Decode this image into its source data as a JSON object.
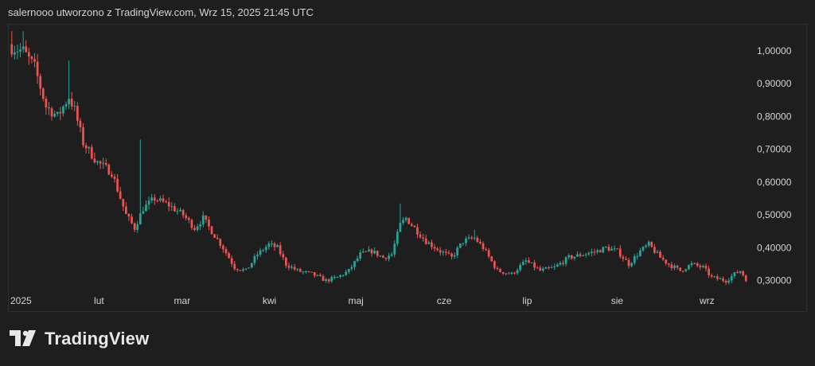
{
  "header": {
    "caption": "salernooo utworzono z TradingView.com, Wrz 15, 2025 21:45 UTC"
  },
  "brand": {
    "name": "TradingView",
    "logo_icon": "tradingview-logo-icon"
  },
  "colors": {
    "background": "#1e1e1e",
    "up": "#26a69a",
    "down": "#ef5350",
    "axis_text": "#d1d4dc"
  },
  "chart_data": {
    "type": "candlestick",
    "title": "",
    "xlabel": "",
    "ylabel": "",
    "ylim": [
      0.275,
      1.07
    ],
    "y_ticks": [
      "1,00000",
      "0,90000",
      "0,80000",
      "0,70000",
      "0,60000",
      "0,50000",
      "0,40000",
      "0,30000"
    ],
    "y_tick_values": [
      1.0,
      0.9,
      0.8,
      0.7,
      0.6,
      0.5,
      0.4,
      0.3
    ],
    "x_ticks": [
      "2025",
      "lut",
      "mar",
      "kwi",
      "maj",
      "cze",
      "lip",
      "sie",
      "wrz"
    ],
    "x_tick_days": [
      0,
      31,
      59,
      90,
      120,
      151,
      181,
      212,
      243
    ],
    "start_date": "2025-01-01",
    "days_shown": 258,
    "grid": false,
    "anchors_close": [
      [
        0,
        1.01
      ],
      [
        4,
        1.0
      ],
      [
        8,
        0.95
      ],
      [
        12,
        0.83
      ],
      [
        16,
        0.8
      ],
      [
        20,
        0.86
      ],
      [
        22,
        0.82
      ],
      [
        25,
        0.72
      ],
      [
        30,
        0.66
      ],
      [
        35,
        0.63
      ],
      [
        40,
        0.5
      ],
      [
        43,
        0.46
      ],
      [
        46,
        0.52
      ],
      [
        50,
        0.55
      ],
      [
        55,
        0.53
      ],
      [
        60,
        0.5
      ],
      [
        64,
        0.46
      ],
      [
        67,
        0.49
      ],
      [
        70,
        0.45
      ],
      [
        74,
        0.4
      ],
      [
        78,
        0.34
      ],
      [
        82,
        0.33
      ],
      [
        86,
        0.38
      ],
      [
        90,
        0.41
      ],
      [
        93,
        0.4
      ],
      [
        96,
        0.35
      ],
      [
        100,
        0.33
      ],
      [
        105,
        0.32
      ],
      [
        110,
        0.3
      ],
      [
        114,
        0.31
      ],
      [
        118,
        0.33
      ],
      [
        122,
        0.38
      ],
      [
        126,
        0.39
      ],
      [
        130,
        0.37
      ],
      [
        133,
        0.38
      ],
      [
        136,
        0.47
      ],
      [
        138,
        0.49
      ],
      [
        141,
        0.46
      ],
      [
        145,
        0.42
      ],
      [
        150,
        0.39
      ],
      [
        154,
        0.37
      ],
      [
        158,
        0.42
      ],
      [
        162,
        0.43
      ],
      [
        165,
        0.4
      ],
      [
        170,
        0.33
      ],
      [
        175,
        0.32
      ],
      [
        180,
        0.36
      ],
      [
        185,
        0.33
      ],
      [
        190,
        0.34
      ],
      [
        195,
        0.37
      ],
      [
        200,
        0.38
      ],
      [
        205,
        0.39
      ],
      [
        208,
        0.4
      ],
      [
        212,
        0.39
      ],
      [
        216,
        0.35
      ],
      [
        220,
        0.39
      ],
      [
        223,
        0.41
      ],
      [
        227,
        0.37
      ],
      [
        230,
        0.35
      ],
      [
        234,
        0.33
      ],
      [
        238,
        0.35
      ],
      [
        242,
        0.34
      ],
      [
        245,
        0.31
      ],
      [
        250,
        0.3
      ],
      [
        253,
        0.32
      ],
      [
        255,
        0.33
      ],
      [
        257,
        0.305
      ]
    ]
  }
}
